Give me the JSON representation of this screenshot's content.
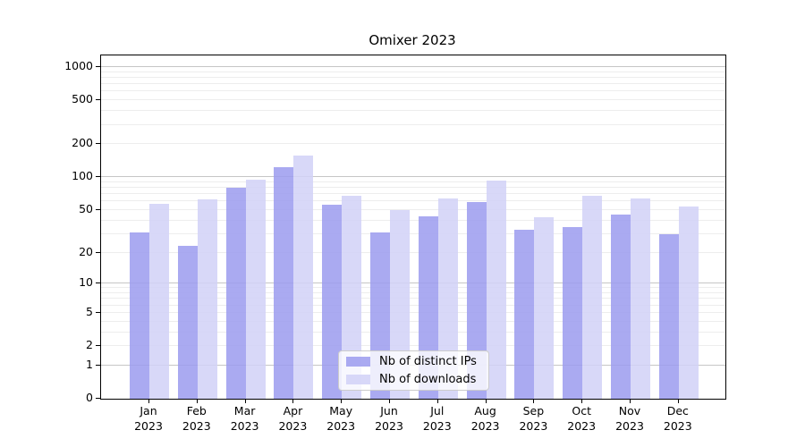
{
  "chart_data": {
    "type": "bar",
    "title": "Omixer 2023",
    "categories": [
      "Jan\n2023",
      "Feb\n2023",
      "Mar\n2023",
      "Apr\n2023",
      "May\n2023",
      "Jun\n2023",
      "Jul\n2023",
      "Aug\n2023",
      "Sep\n2023",
      "Oct\n2023",
      "Nov\n2023",
      "Dec\n2023"
    ],
    "series": [
      {
        "name": "Nb of distinct IPs",
        "color": "#9b9bee",
        "values": [
          31,
          23,
          80,
          124,
          56,
          31,
          44,
          59,
          33,
          35,
          45,
          30
        ]
      },
      {
        "name": "Nb of downloads",
        "color": "#d1d1f7",
        "values": [
          57,
          63,
          95,
          157,
          67,
          50,
          64,
          93,
          43,
          68,
          64,
          54
        ]
      }
    ],
    "xlabel": "",
    "ylabel": "",
    "yscale": "log1p",
    "yticks": [
      1000,
      500,
      200,
      100,
      50,
      20,
      10,
      5,
      2,
      1,
      0
    ],
    "ylim": [
      0,
      1280
    ],
    "grid": "horizontal-log-major-minor",
    "legend_position": "lower-center"
  }
}
